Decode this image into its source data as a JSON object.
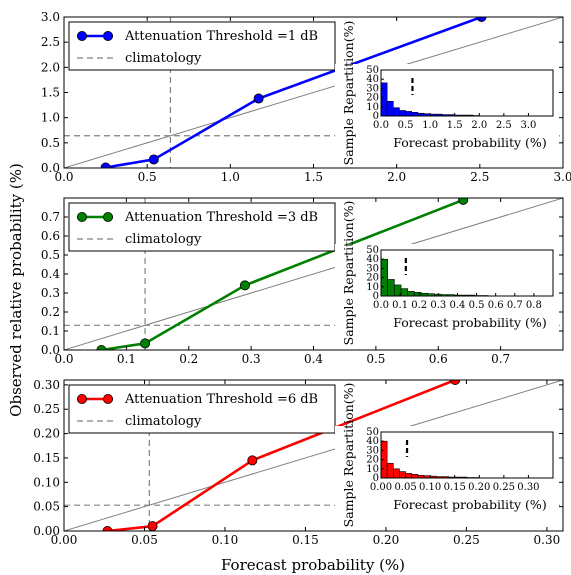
{
  "figure": {
    "ylabel": "Observed relative probability (%)",
    "xlabel": "Forecast probability (%)"
  },
  "chart_data": [
    {
      "type": "line",
      "series": [
        {
          "name": "Attenuation Threshold =1 dB",
          "color": "#0000ff",
          "x": [
            0.25,
            0.54,
            1.17,
            2.51
          ],
          "y": [
            0.01,
            0.17,
            1.38,
            3.0
          ]
        },
        {
          "name": "climatology",
          "color": "#808080",
          "style": "dashed",
          "x_value": 0.64,
          "y_value": 0.64
        }
      ],
      "diagonal": true,
      "xlim": [
        0,
        3.0
      ],
      "ylim": [
        0,
        3.0
      ],
      "xticks": [
        "0.0",
        "0.5",
        "1.0",
        "1.5",
        "2.0",
        "2.5",
        "3.0"
      ],
      "yticks": [
        "0.0",
        "0.5",
        "1.0",
        "1.5",
        "2.0",
        "2.5",
        "3.0"
      ],
      "inset": {
        "type": "bar",
        "ylabel": "Sample Repartition(%)",
        "xlabel": "Forecast probability (%)",
        "xlim": [
          0,
          3.5
        ],
        "ylim": [
          0,
          50
        ],
        "xticks": [
          "0.0",
          "0.5",
          "1.0",
          "1.5",
          "2.0",
          "2.5",
          "3.0"
        ],
        "yticks": [
          "0",
          "10",
          "20",
          "30",
          "40",
          "50"
        ],
        "bin_width": 0.125,
        "values": [
          36,
          16,
          9,
          6,
          5,
          4,
          3,
          2.5,
          2,
          2,
          1.5,
          1.5,
          1,
          1,
          1,
          0.5
        ],
        "climatology_x": 0.64,
        "color": "#0000ff"
      }
    },
    {
      "type": "line",
      "series": [
        {
          "name": "Attenuation Threshold =3 dB",
          "color": "#008000",
          "x": [
            0.06,
            0.13,
            0.29,
            0.64
          ],
          "y": [
            0.0,
            0.035,
            0.34,
            0.79
          ]
        },
        {
          "name": "climatology",
          "color": "#808080",
          "style": "dashed",
          "x_value": 0.13,
          "y_value": 0.13
        }
      ],
      "diagonal": true,
      "xlim": [
        0,
        0.8
      ],
      "ylim": [
        0,
        0.8
      ],
      "xticks": [
        "0.0",
        "0.1",
        "0.2",
        "0.3",
        "0.4",
        "0.5",
        "0.6",
        "0.7"
      ],
      "yticks": [
        "0.0",
        "0.1",
        "0.2",
        "0.3",
        "0.4",
        "0.5",
        "0.6",
        "0.7"
      ],
      "inset": {
        "type": "bar",
        "ylabel": "Sample Repartition(%)",
        "xlabel": "Forecast probability (%)",
        "xlim": [
          0,
          0.9
        ],
        "ylim": [
          0,
          50
        ],
        "xticks": [
          "0.0",
          "0.1",
          "0.2",
          "0.3",
          "0.4",
          "0.5",
          "0.6",
          "0.7",
          "0.8"
        ],
        "yticks": [
          "0",
          "10",
          "20",
          "30",
          "40",
          "50"
        ],
        "bin_width": 0.035,
        "values": [
          40,
          18,
          12,
          8,
          5,
          4,
          3,
          2.5,
          2,
          1.5,
          1.5,
          1,
          1,
          1,
          0.5,
          0.5
        ],
        "climatology_x": 0.13,
        "color": "#008000"
      }
    },
    {
      "type": "line",
      "series": [
        {
          "name": "Attenuation Threshold =6 dB",
          "color": "#ff0000",
          "x": [
            0.027,
            0.055,
            0.117,
            0.243
          ],
          "y": [
            0.0,
            0.01,
            0.145,
            0.31
          ]
        },
        {
          "name": "climatology",
          "color": "#808080",
          "style": "dashed",
          "x_value": 0.053,
          "y_value": 0.053
        }
      ],
      "diagonal": true,
      "xlim": [
        0,
        0.31
      ],
      "ylim": [
        0,
        0.31
      ],
      "xticks": [
        "0.00",
        "0.05",
        "0.10",
        "0.15",
        "0.20",
        "0.25",
        "0.30"
      ],
      "yticks": [
        "0.00",
        "0.05",
        "0.10",
        "0.15",
        "0.20",
        "0.25",
        "0.30"
      ],
      "inset": {
        "type": "bar",
        "ylabel": "Sample Repartition(%)",
        "xlabel": "Forecast probability (%)",
        "xlim": [
          0,
          0.35
        ],
        "ylim": [
          0,
          50
        ],
        "xticks": [
          "0.00",
          "0.05",
          "0.10",
          "0.15",
          "0.20",
          "0.25",
          "0.30"
        ],
        "yticks": [
          "0",
          "10",
          "20",
          "30",
          "40",
          "50"
        ],
        "bin_width": 0.0125,
        "values": [
          40,
          16,
          10,
          7,
          5,
          4,
          3,
          2.5,
          2,
          1.5,
          1.5,
          1,
          1,
          1,
          0.5,
          0.5
        ],
        "climatology_x": 0.053,
        "color": "#ff0000"
      }
    }
  ]
}
